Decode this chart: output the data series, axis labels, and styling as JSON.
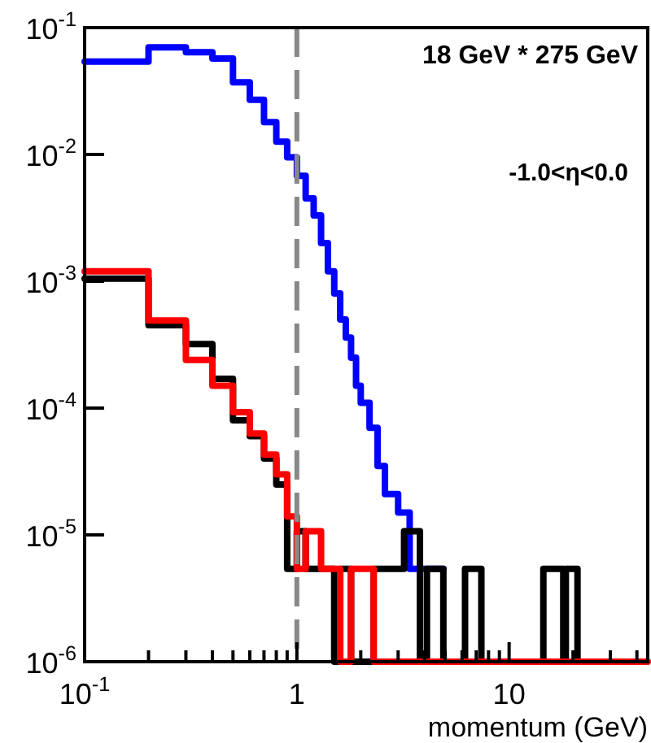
{
  "chart_data": {
    "type": "step",
    "xlabel": "momentum (GeV)",
    "log": "xy",
    "grid": false,
    "legend": false,
    "line_style": "solid",
    "marker": "none",
    "xlim": [
      0.1,
      45
    ],
    "xticks": [
      {
        "value": 0.1,
        "label": "10$^{-1}$"
      },
      {
        "value": 0.2,
        "label": null
      },
      {
        "value": 0.3,
        "label": null
      },
      {
        "value": 0.4,
        "label": null
      },
      {
        "value": 0.5,
        "label": null
      },
      {
        "value": 0.6,
        "label": null
      },
      {
        "value": 0.7,
        "label": null
      },
      {
        "value": 0.8,
        "label": null
      },
      {
        "value": 0.9,
        "label": null
      },
      1,
      {
        "value": 2,
        "label": null
      },
      {
        "value": 3,
        "label": null
      },
      {
        "value": 4,
        "label": null
      },
      {
        "value": 5,
        "label": null
      },
      {
        "value": 6,
        "label": null
      },
      {
        "value": 7,
        "label": null
      },
      {
        "value": 8,
        "label": null
      },
      {
        "value": 9,
        "label": null
      },
      10,
      {
        "value": 20,
        "label": null
      },
      {
        "value": 30,
        "label": null
      },
      {
        "value": 40,
        "label": null
      }
    ],
    "ylim": [
      1e-06,
      0.1
    ],
    "yticks": [
      {
        "value": 1e-06,
        "label": "10$^{-6}$"
      },
      {
        "value": 1e-05,
        "label": "10$^{-5}$"
      },
      {
        "value": 0.0001,
        "label": "10$^{-4}$"
      },
      {
        "value": 0.001,
        "label": "10$^{-3}$"
      },
      {
        "value": 0.01,
        "label": "10$^{-2}$"
      },
      {
        "value": 0.1,
        "label": "10$^{-1}$"
      }
    ],
    "annotations": [
      "18 GeV * 275 GeV",
      "-1.0<η<0.0"
    ],
    "ref_lines": [
      {
        "axis": "x",
        "value": 1,
        "color": "#888888",
        "line_style": "dashed"
      }
    ],
    "series": [
      {
        "color": "#0000ff",
        "x": [
          0.1,
          0.2,
          0.3,
          0.4,
          0.5,
          0.6,
          0.7,
          0.8,
          0.9,
          1.0,
          1.1,
          1.2,
          1.3,
          1.4,
          1.5,
          1.6,
          1.7,
          1.8,
          1.9,
          2.0,
          2.2,
          2.4,
          2.6,
          3.0,
          3.4,
          4.9
        ],
        "values": [
          0.054,
          0.07,
          0.064,
          0.057,
          0.037,
          0.027,
          0.018,
          0.0126,
          0.0095,
          0.0068,
          0.0045,
          0.0033,
          0.002,
          0.0012,
          0.0008,
          0.0005,
          0.00036,
          0.00025,
          0.00015,
          0.00011,
          7e-05,
          3.5e-05,
          2.1e-05,
          1.5e-05,
          5.4e-06,
          5.4e-06
        ]
      },
      {
        "color": "#000000",
        "x": [
          0.1,
          0.2,
          0.3,
          0.4,
          0.5,
          0.6,
          0.7,
          0.8,
          0.9,
          1.0,
          1.1,
          1.5,
          1.6,
          1.8,
          2.3,
          3.2,
          3.8,
          4.1,
          4.9,
          6.2,
          7.4,
          14.5,
          18,
          18.5,
          21
        ],
        "values": [
          0.00105,
          0.00045,
          0.00032,
          0.00017,
          8e-05,
          6e-05,
          4e-05,
          2.5e-05,
          5.4e-06,
          1.07e-05,
          5.4e-06,
          1e-06,
          5.4e-06,
          1e-06,
          5.4e-06,
          1.07e-05,
          1e-06,
          5.4e-06,
          1e-06,
          5.4e-06,
          1e-06,
          5.4e-06,
          1e-06,
          5.4e-06,
          1e-06
        ]
      },
      {
        "color": "#ff0000",
        "x": [
          0.1,
          0.2,
          0.3,
          0.4,
          0.5,
          0.6,
          0.7,
          0.8,
          0.9,
          1.0,
          1.1,
          1.3,
          1.6,
          1.8,
          2.3,
          45
        ],
        "values": [
          0.0012,
          0.00049,
          0.00024,
          0.00015,
          9.3e-05,
          6.3e-05,
          4.3e-05,
          3e-05,
          1.4e-05,
          5.4e-06,
          1.07e-05,
          5.4e-06,
          1e-06,
          5.4e-06,
          1e-06,
          1e-06
        ]
      }
    ]
  }
}
